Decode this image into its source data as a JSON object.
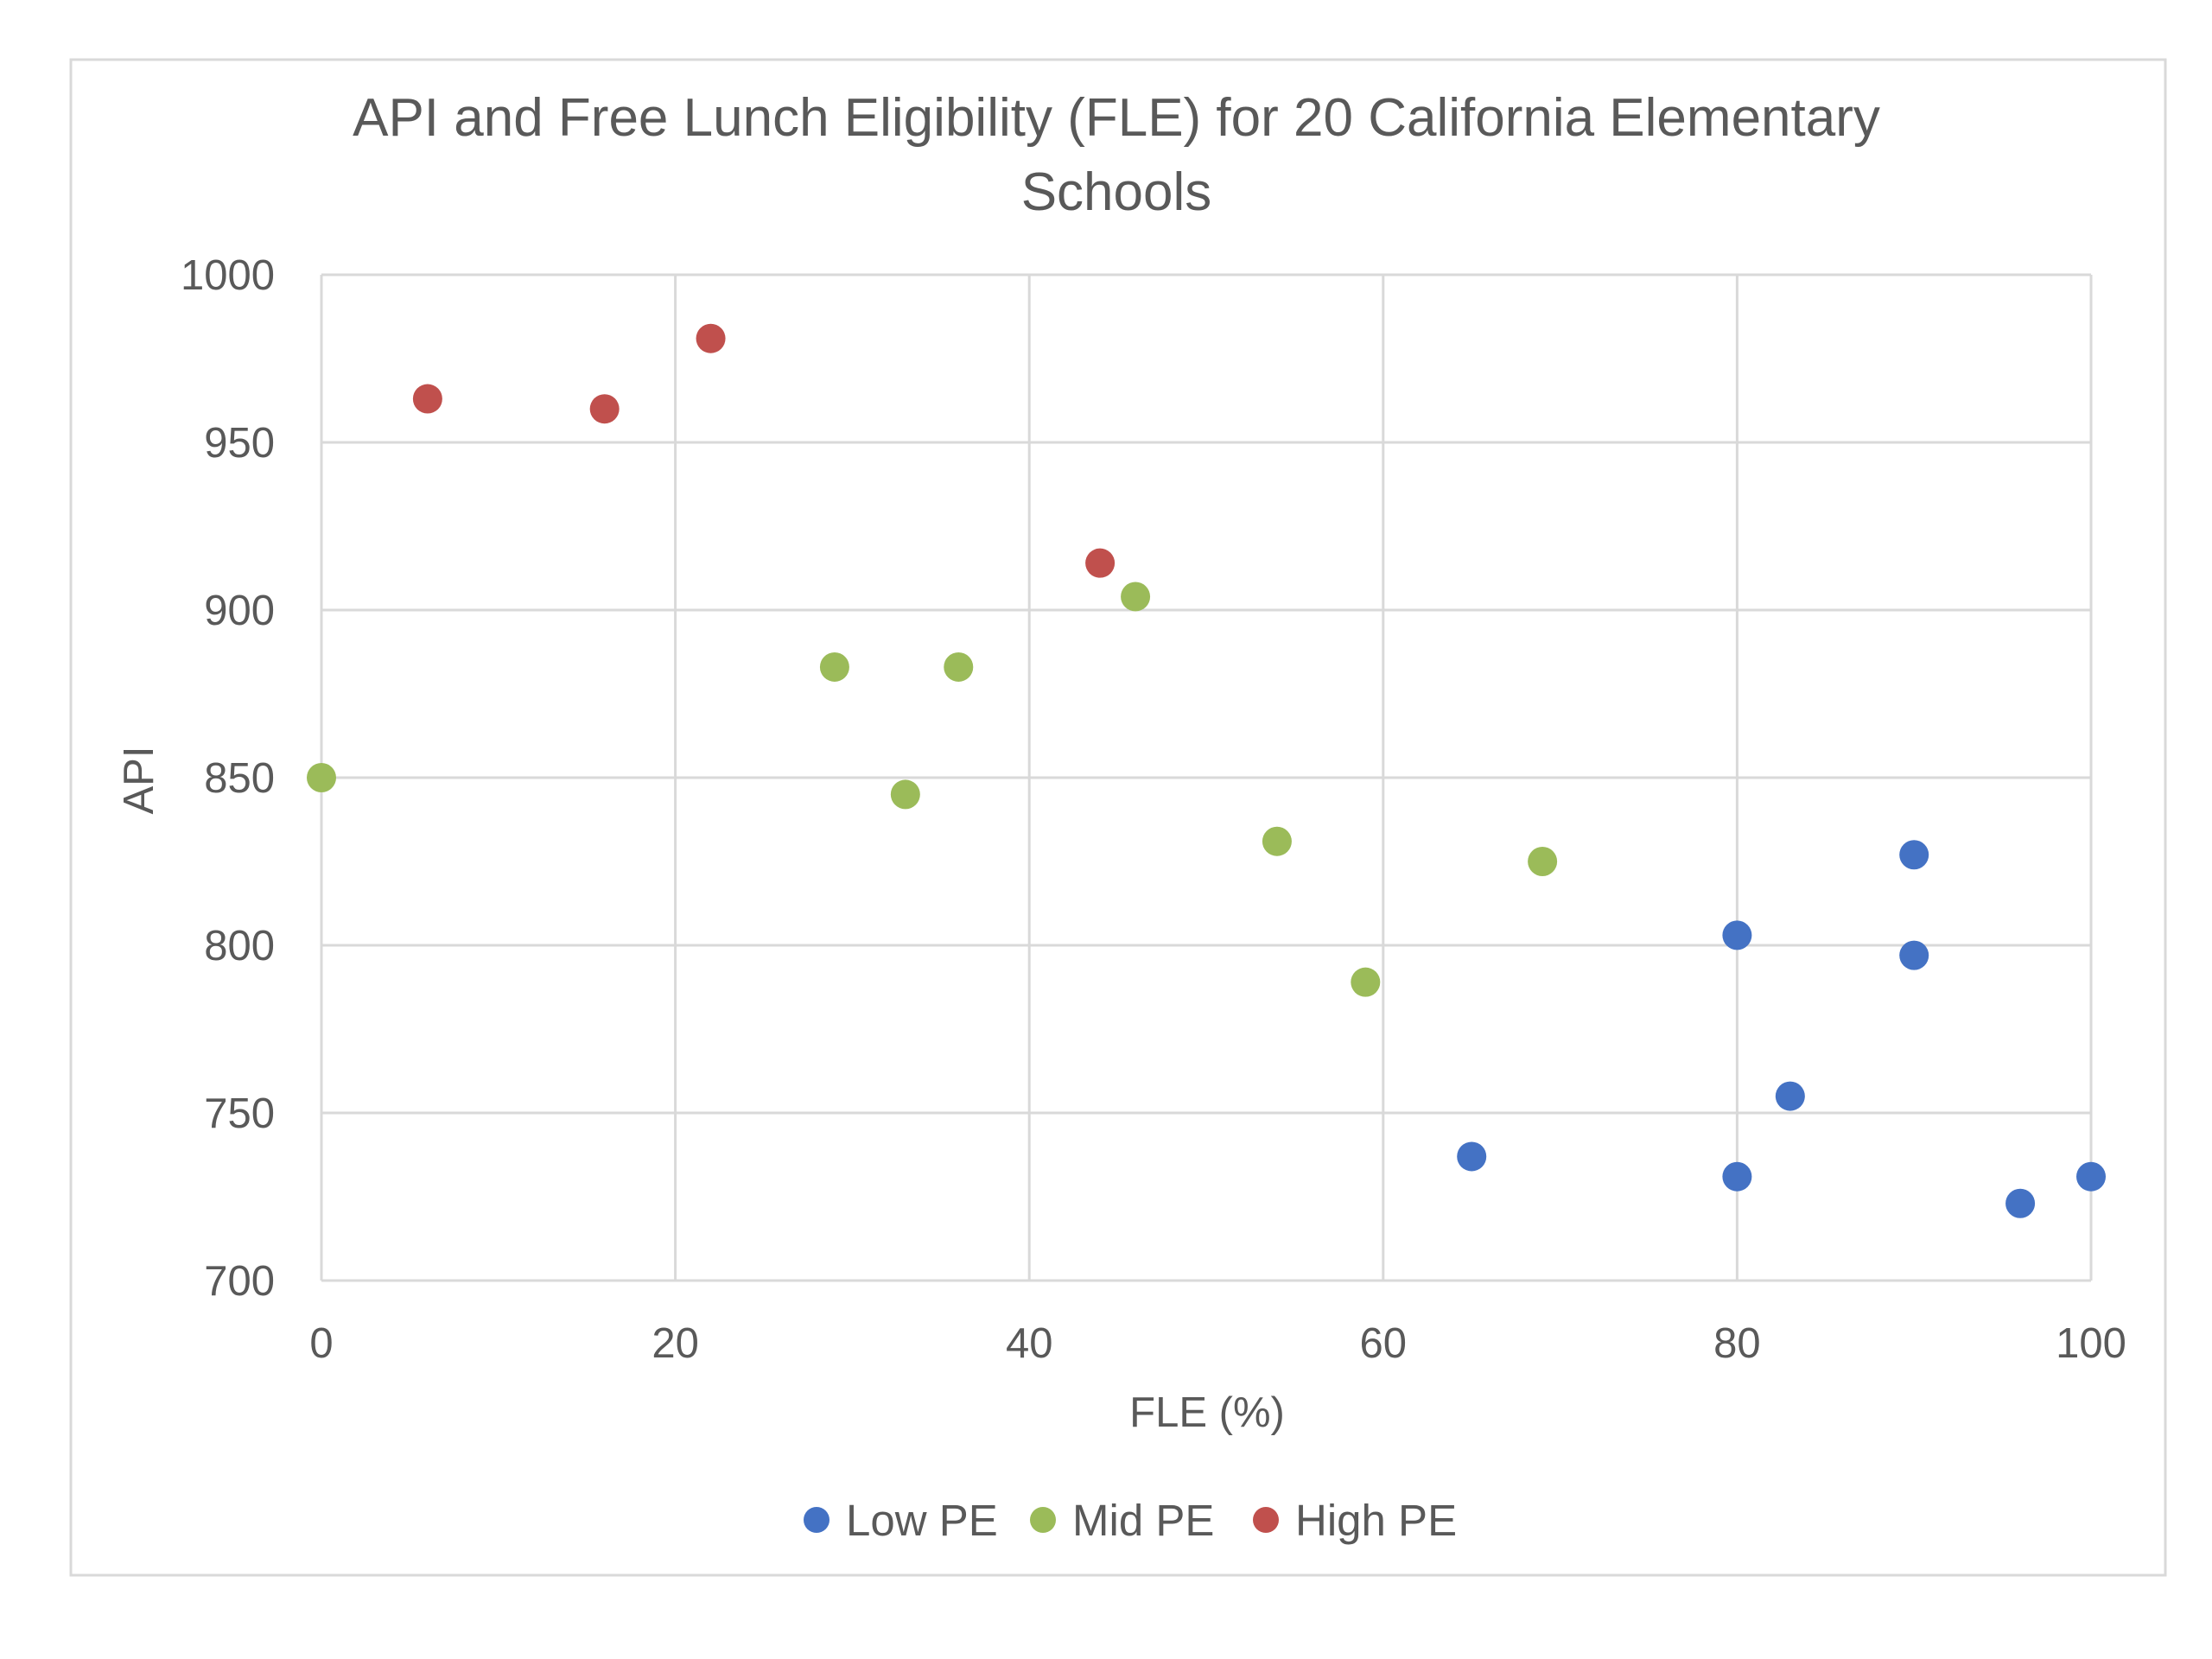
{
  "chart_data": {
    "type": "scatter",
    "title_lines": [
      "API and Free Lunch Eligibility (FLE) for 20 California Elementary",
      "Schools"
    ],
    "xlabel": "FLE (%)",
    "ylabel": "API",
    "xlim": [
      0,
      100
    ],
    "ylim": [
      700,
      1000
    ],
    "x_ticks": [
      0,
      20,
      40,
      60,
      80,
      100
    ],
    "y_ticks": [
      700,
      750,
      800,
      850,
      900,
      950,
      1000
    ],
    "x_tick_labels": [
      "0",
      "20",
      "40",
      "60",
      "80",
      "100"
    ],
    "y_tick_labels": [
      "700",
      "750",
      "800",
      "850",
      "900",
      "950",
      "1000"
    ],
    "grid": true,
    "legend_position": "bottom",
    "series": [
      {
        "name": "Low PE",
        "color": "#4472c4",
        "points": [
          {
            "x": 65,
            "y": 737
          },
          {
            "x": 80,
            "y": 803
          },
          {
            "x": 80,
            "y": 731
          },
          {
            "x": 83,
            "y": 755
          },
          {
            "x": 90,
            "y": 827
          },
          {
            "x": 90,
            "y": 797
          },
          {
            "x": 96,
            "y": 723
          },
          {
            "x": 100,
            "y": 731
          }
        ]
      },
      {
        "name": "Mid PE",
        "color": "#9bbb59",
        "points": [
          {
            "x": 0,
            "y": 850
          },
          {
            "x": 29,
            "y": 883
          },
          {
            "x": 33,
            "y": 845
          },
          {
            "x": 36,
            "y": 883
          },
          {
            "x": 46,
            "y": 904
          },
          {
            "x": 54,
            "y": 831
          },
          {
            "x": 59,
            "y": 789
          },
          {
            "x": 69,
            "y": 825
          }
        ]
      },
      {
        "name": "High PE",
        "color": "#c0504d",
        "points": [
          {
            "x": 6,
            "y": 963
          },
          {
            "x": 16,
            "y": 960
          },
          {
            "x": 22,
            "y": 981
          },
          {
            "x": 44,
            "y": 914
          }
        ]
      }
    ]
  }
}
